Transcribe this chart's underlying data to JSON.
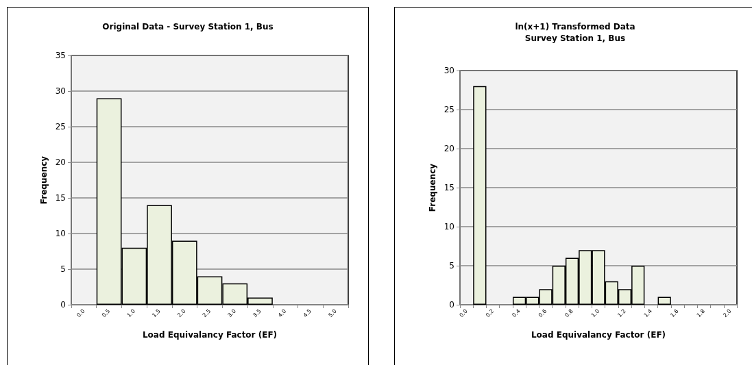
{
  "chart_data": [
    {
      "type": "bar",
      "title": "Original Data - Survey Station 1, Bus",
      "xlabel": "Load Equivalancy Factor (EF)",
      "ylabel": "Frequency",
      "categories": [
        "0.0",
        "0.5",
        "1.0",
        "1.5",
        "2.0",
        "2.5",
        "3.0",
        "3.5",
        "4.0",
        "4.5",
        "5.0"
      ],
      "values": [
        0,
        29,
        8,
        14,
        9,
        4,
        3,
        1,
        0,
        0,
        0
      ],
      "color": "#ebf1de",
      "ylim": [
        0,
        35
      ],
      "yticks": [
        0,
        5,
        10,
        15,
        20,
        25,
        30,
        35
      ],
      "grid": "y"
    },
    {
      "type": "bar",
      "title": "ln(x+1) Transformed Data\nSurvey Station 1, Bus",
      "xlabel": "Load Equivalancy Factor (EF)",
      "ylabel": "Frequency",
      "categories": [
        "0.0",
        null,
        "0.2",
        null,
        "0.4",
        null,
        "0.6",
        null,
        "0.8",
        null,
        "1.0",
        null,
        "1.2",
        null,
        "1.4",
        null,
        "1.6",
        null,
        "1.8",
        null,
        "2.0"
      ],
      "values": [
        0,
        28,
        0,
        0,
        1,
        1,
        2,
        5,
        6,
        7,
        7,
        3,
        2,
        5,
        0,
        1,
        0,
        0,
        0,
        0,
        0
      ],
      "color": "#ebf1de",
      "ylim": [
        0,
        30
      ],
      "yticks": [
        0,
        5,
        10,
        15,
        20,
        25,
        30
      ],
      "grid": "y"
    }
  ]
}
